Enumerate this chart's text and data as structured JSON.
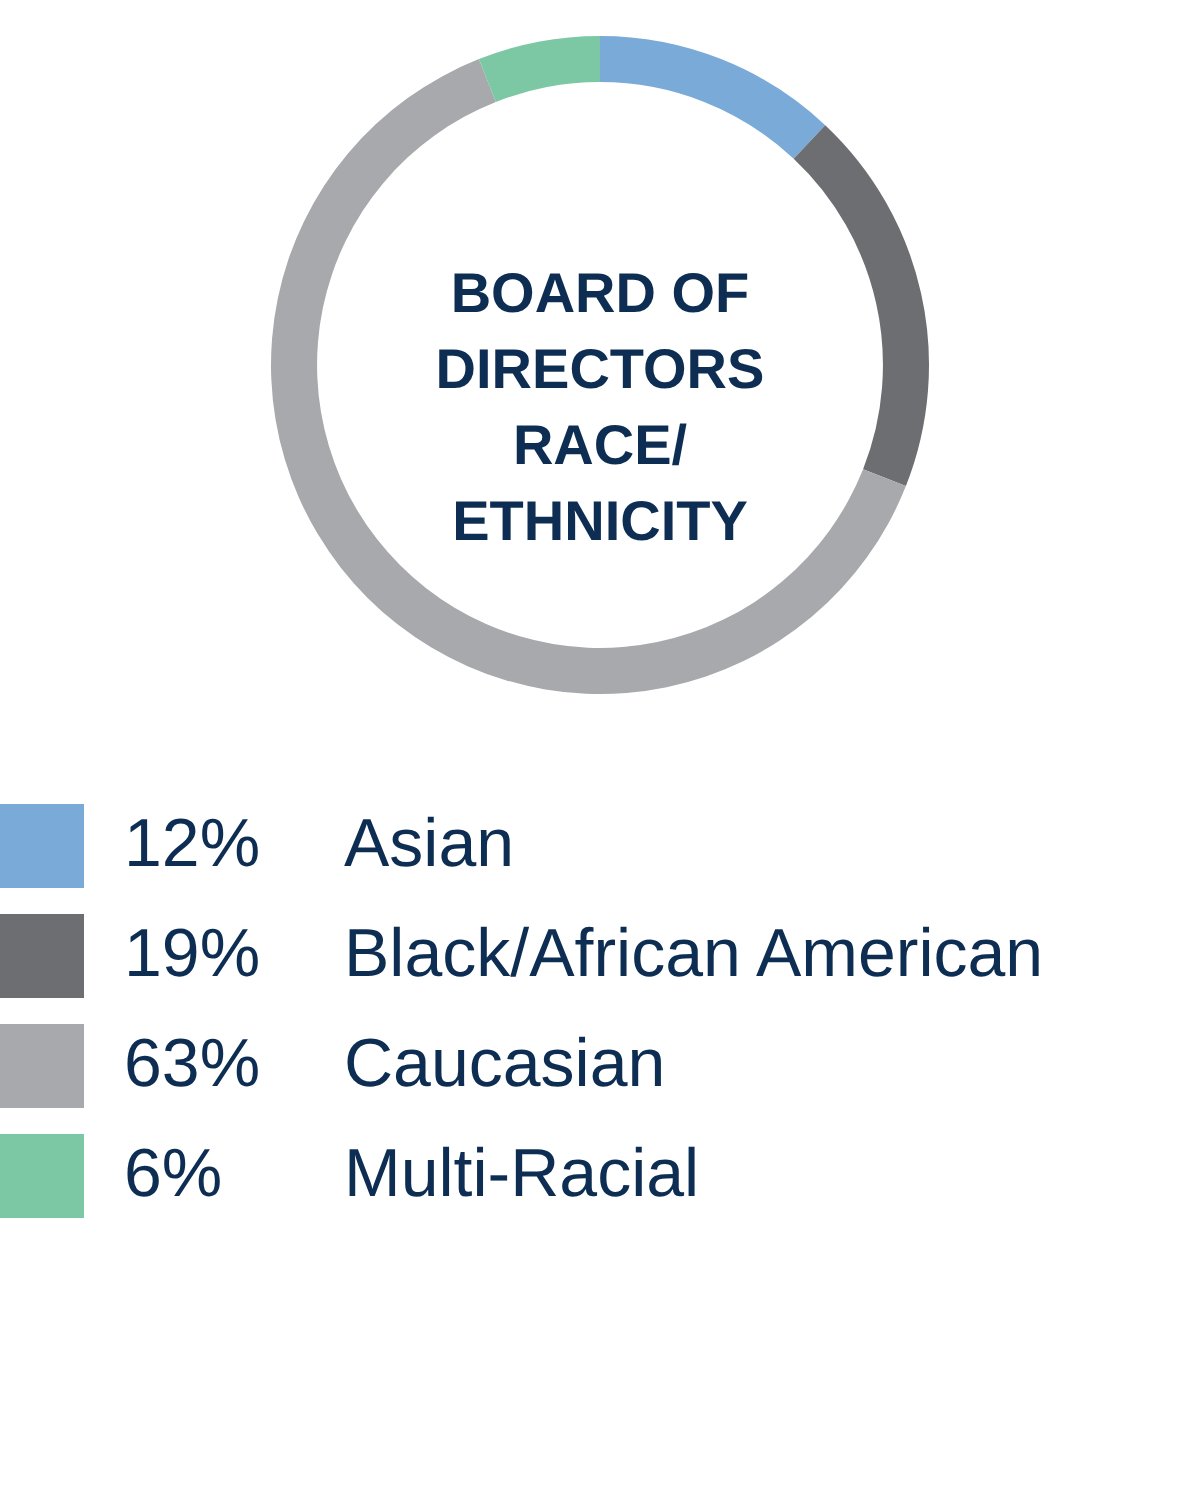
{
  "chart_data": {
    "type": "donut",
    "title": "BOARD OF DIRECTORS RACE/ ETHNICITY",
    "categories": [
      "Asian",
      "Black/African American",
      "Caucasian",
      "Multi-Racial"
    ],
    "values": [
      12,
      19,
      63,
      6
    ],
    "colors": [
      "#7aaad8",
      "#6d6e71",
      "#a7a9ac",
      "#7dc8a4"
    ],
    "value_labels": [
      "12%",
      "19%",
      "63%",
      "6%"
    ],
    "legend": "bottom left"
  }
}
